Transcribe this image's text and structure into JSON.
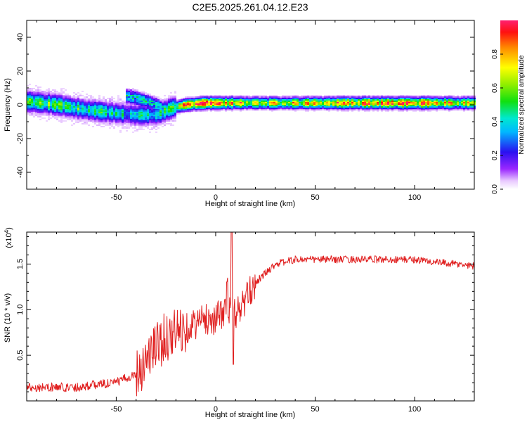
{
  "title": "C2E5.2025.261.04.12.E23",
  "colors": {
    "line": "#e02020",
    "axis": "#000000",
    "background": "#ffffff"
  },
  "chart_data": [
    {
      "type": "heatmap",
      "name": "spectrogram",
      "xlabel": "Height of straight line (km)",
      "ylabel": "Frequency (Hz)",
      "xlim": [
        -95,
        130
      ],
      "ylim": [
        -50,
        50
      ],
      "xticks": [
        "-50",
        "0",
        "50",
        "100"
      ],
      "xtick_values": [
        -50,
        0,
        50,
        100
      ],
      "yticks": [
        "-40",
        "-20",
        "0",
        "20",
        "40"
      ],
      "ytick_values": [
        -40,
        -20,
        0,
        20,
        40
      ],
      "colorbar": {
        "label": "Normalized spectral amplitude",
        "range": [
          0,
          1
        ],
        "ticks": [
          "0.0",
          "0.2",
          "0.4",
          "0.6",
          "0.8"
        ],
        "tick_values": [
          0.0,
          0.2,
          0.4,
          0.6,
          0.8
        ]
      },
      "ridge": {
        "description": "dominant frequency track",
        "x": [
          -95,
          -80,
          -65,
          -50,
          -40,
          -30,
          -22,
          -15,
          -5,
          0,
          10,
          20,
          40,
          60,
          80,
          100,
          130
        ],
        "center_hz": [
          2,
          0,
          -3,
          -5,
          -6,
          -6,
          -2,
          0,
          1,
          1,
          1,
          1,
          1,
          1,
          1,
          1,
          1
        ],
        "peak_amplitude": [
          0.55,
          0.55,
          0.5,
          0.45,
          0.4,
          0.45,
          0.6,
          0.8,
          0.95,
          0.9,
          0.85,
          0.7,
          0.7,
          0.75,
          0.85,
          0.9,
          0.7
        ]
      },
      "secondary_branch": {
        "x": [
          -45,
          -40,
          -35,
          -30,
          -25
        ],
        "center_hz": [
          5,
          4,
          2,
          0,
          -3
        ]
      }
    },
    {
      "type": "line",
      "name": "snr",
      "xlabel": "Height of straight line (km)",
      "ylabel": "SNR (10 * v/v)",
      "scale_label": "(x10^4)",
      "scale_base": "(x10",
      "scale_exp": "4",
      "scale_close": ")",
      "xlim": [
        -95,
        130
      ],
      "ylim": [
        0.0,
        1.85
      ],
      "xticks": [
        "-50",
        "0",
        "50",
        "100"
      ],
      "xtick_values": [
        -50,
        0,
        50,
        100
      ],
      "yticks": [
        "0.5",
        "1.0",
        "1.5"
      ],
      "ytick_values": [
        0.5,
        1.0,
        1.5
      ],
      "series": [
        {
          "name": "SNR",
          "x": [
            -95,
            -80,
            -70,
            -60,
            -50,
            -40,
            -35,
            -30,
            -25,
            -20,
            -15,
            -10,
            -5,
            0,
            5,
            8,
            10,
            15,
            20,
            25,
            30,
            40,
            50,
            60,
            70,
            80,
            90,
            100,
            110,
            120,
            130
          ],
          "y": [
            0.15,
            0.15,
            0.15,
            0.18,
            0.2,
            0.3,
            0.45,
            0.6,
            0.7,
            0.75,
            0.8,
            0.85,
            0.9,
            0.9,
            1.0,
            1.85,
            0.95,
            1.1,
            1.3,
            1.4,
            1.5,
            1.55,
            1.55,
            1.55,
            1.55,
            1.55,
            1.55,
            1.55,
            1.52,
            1.5,
            1.48
          ]
        }
      ]
    }
  ]
}
